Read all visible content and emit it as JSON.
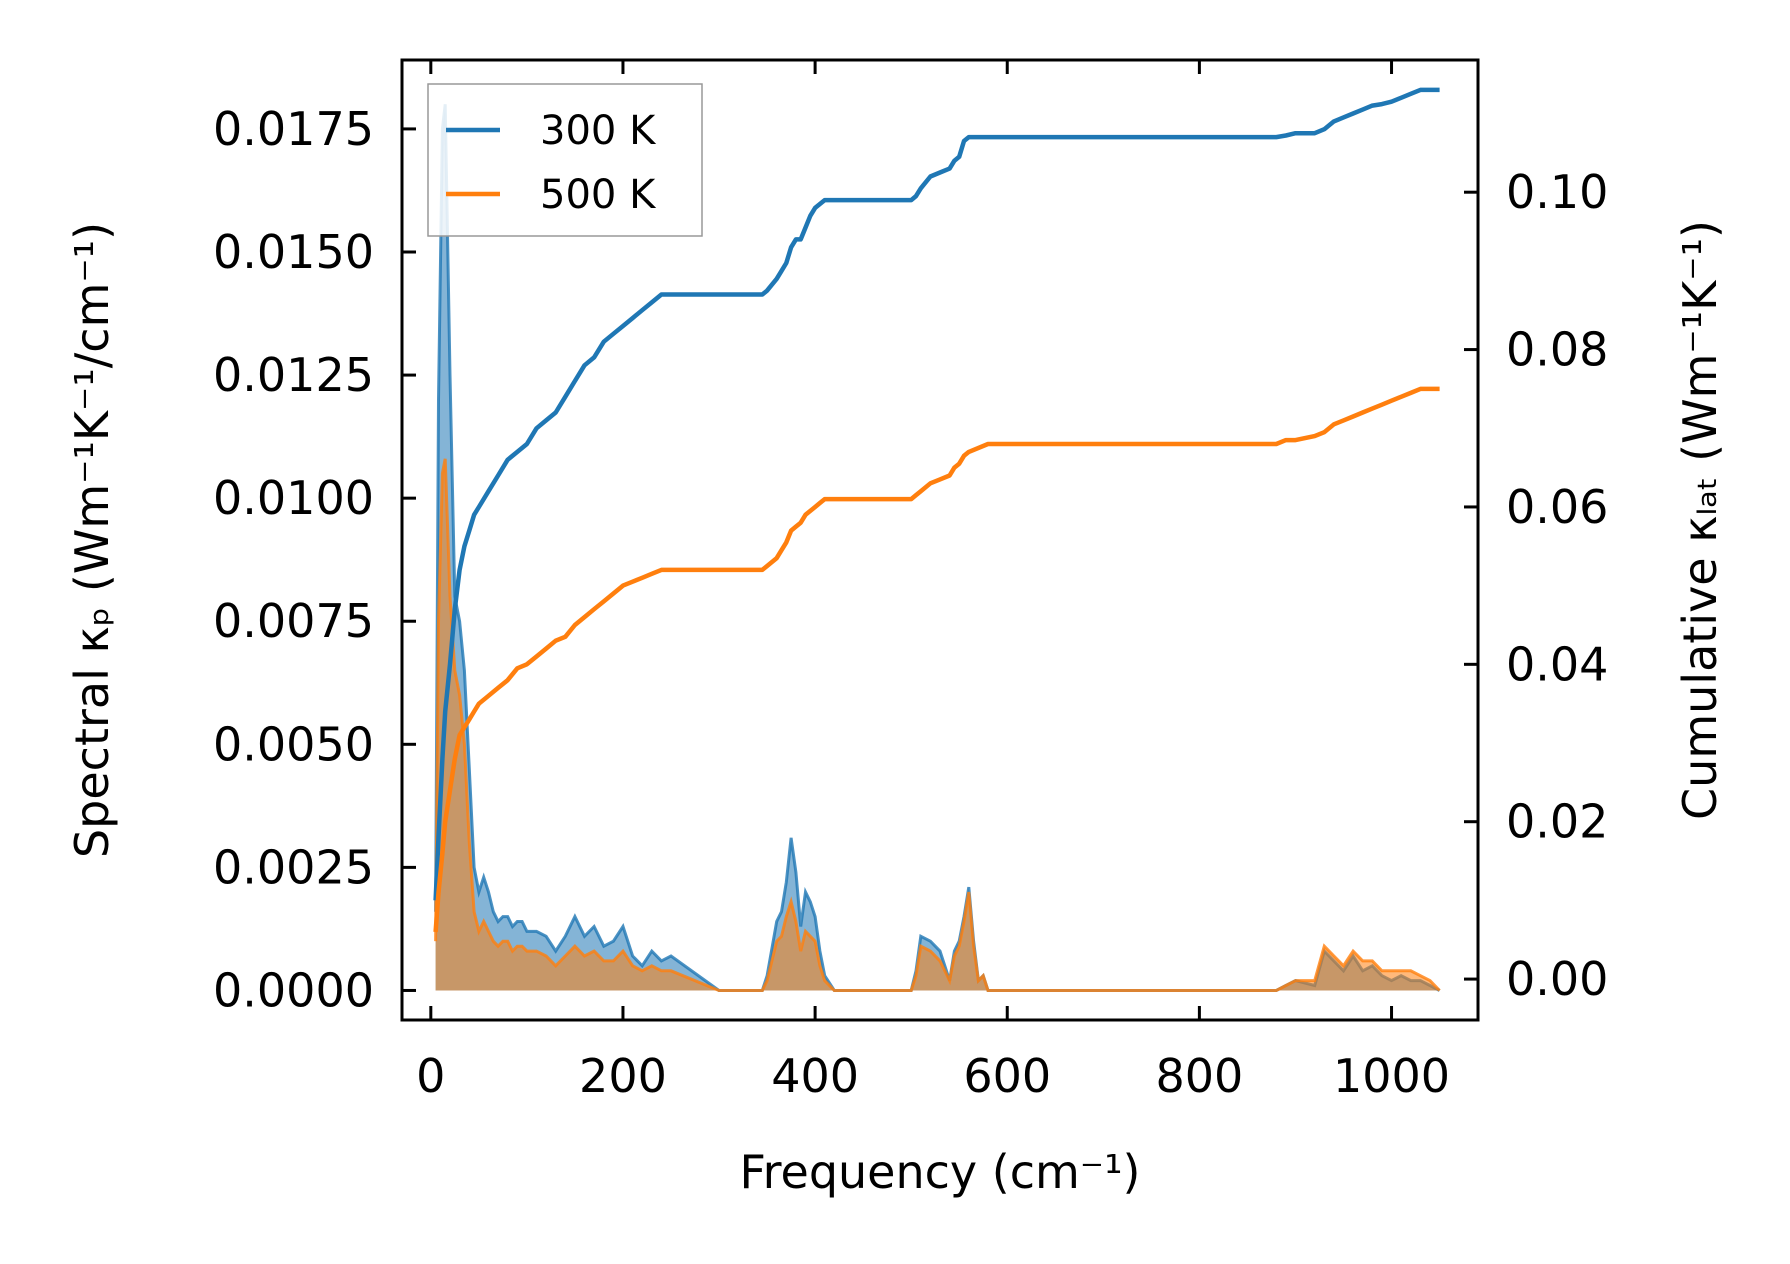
{
  "chart_data": {
    "type": "line",
    "xlabel": "Frequency (cm⁻¹)",
    "ylabel_left": "Spectral κₚ (Wm⁻¹K⁻¹/cm⁻¹)",
    "ylabel_right": "Cumulative κₗₐₜ (Wm⁻¹K⁻¹)",
    "xlim": [
      -30,
      1090
    ],
    "ylim_left": [
      -0.0006,
      0.0189
    ],
    "ylim_right": [
      -0.0052,
      0.1168
    ],
    "x_ticks": [
      0,
      200,
      400,
      600,
      800,
      1000
    ],
    "x_tick_labels": [
      "0",
      "200",
      "400",
      "600",
      "800",
      "1000"
    ],
    "y_left_ticks": [
      0,
      0.0025,
      0.005,
      0.0075,
      0.01,
      0.0125,
      0.015,
      0.0175
    ],
    "y_left_tick_labels": [
      "0.0000",
      "0.0025",
      "0.0050",
      "0.0075",
      "0.0100",
      "0.0125",
      "0.0150",
      "0.0175"
    ],
    "y_right_ticks": [
      0,
      0.02,
      0.04,
      0.06,
      0.08,
      0.1
    ],
    "y_right_tick_labels": [
      "0.00",
      "0.02",
      "0.04",
      "0.06",
      "0.08",
      "0.10"
    ],
    "legend": {
      "position": "top-left",
      "entries": [
        "300 K",
        "500 K"
      ]
    },
    "colors": {
      "300K": "#1f77b4",
      "500K": "#ff7f0e"
    },
    "grid": false,
    "spectral": [
      {
        "name": "300 K",
        "axis": "left",
        "x": [
          5,
          8,
          12,
          15,
          20,
          25,
          30,
          35,
          40,
          45,
          50,
          55,
          60,
          65,
          70,
          75,
          80,
          85,
          90,
          95,
          100,
          110,
          120,
          130,
          140,
          150,
          160,
          170,
          180,
          190,
          200,
          210,
          220,
          230,
          240,
          250,
          300,
          345,
          350,
          360,
          365,
          370,
          375,
          380,
          385,
          390,
          395,
          400,
          405,
          410,
          420,
          500,
          505,
          510,
          520,
          530,
          540,
          545,
          550,
          555,
          560,
          565,
          570,
          575,
          580,
          600,
          700,
          800,
          880,
          890,
          900,
          920,
          930,
          940,
          950,
          960,
          970,
          980,
          990,
          1000,
          1010,
          1020,
          1030,
          1040,
          1050
        ],
        "y": [
          0.0016,
          0.012,
          0.0175,
          0.018,
          0.0125,
          0.008,
          0.0075,
          0.0065,
          0.0045,
          0.0025,
          0.002,
          0.0023,
          0.002,
          0.0016,
          0.0014,
          0.0015,
          0.0015,
          0.0013,
          0.0014,
          0.0014,
          0.0012,
          0.0012,
          0.0011,
          0.0008,
          0.0011,
          0.0015,
          0.0011,
          0.0013,
          0.0009,
          0.001,
          0.0013,
          0.0007,
          0.0005,
          0.0008,
          0.0006,
          0.0007,
          0.0,
          0.0,
          0.0003,
          0.0014,
          0.0016,
          0.0022,
          0.0031,
          0.0024,
          0.0013,
          0.002,
          0.0018,
          0.0015,
          0.0008,
          0.0003,
          0.0,
          0.0,
          0.0004,
          0.0011,
          0.001,
          0.0008,
          0.0002,
          0.0008,
          0.001,
          0.0015,
          0.0021,
          0.001,
          0.0002,
          0.0003,
          0.0,
          0.0,
          0.0,
          0.0,
          0.0,
          0.0001,
          0.0002,
          0.0001,
          0.0008,
          0.0006,
          0.0004,
          0.0007,
          0.0004,
          0.0005,
          0.0003,
          0.0002,
          0.0003,
          0.0002,
          0.0002,
          0.0001,
          0.0
        ]
      },
      {
        "name": "500 K",
        "axis": "left",
        "x": [
          5,
          8,
          12,
          15,
          20,
          25,
          30,
          35,
          40,
          45,
          50,
          55,
          60,
          65,
          70,
          75,
          80,
          85,
          90,
          95,
          100,
          110,
          120,
          130,
          140,
          150,
          160,
          170,
          180,
          190,
          200,
          210,
          220,
          230,
          240,
          250,
          300,
          345,
          350,
          360,
          365,
          370,
          375,
          380,
          385,
          390,
          395,
          400,
          405,
          410,
          420,
          500,
          505,
          510,
          520,
          530,
          540,
          545,
          550,
          555,
          560,
          565,
          570,
          575,
          580,
          600,
          700,
          800,
          880,
          890,
          900,
          920,
          930,
          940,
          950,
          960,
          970,
          980,
          990,
          1000,
          1010,
          1020,
          1030,
          1040,
          1050
        ],
        "y": [
          0.001,
          0.0075,
          0.0105,
          0.0108,
          0.008,
          0.0065,
          0.006,
          0.005,
          0.003,
          0.0016,
          0.0012,
          0.0014,
          0.0012,
          0.001,
          0.0009,
          0.001,
          0.001,
          0.0008,
          0.0009,
          0.0009,
          0.0008,
          0.0008,
          0.0007,
          0.0005,
          0.0007,
          0.0009,
          0.0007,
          0.0008,
          0.0006,
          0.0006,
          0.0008,
          0.0005,
          0.0004,
          0.0005,
          0.0004,
          0.0004,
          0.0,
          0.0,
          0.0002,
          0.001,
          0.0011,
          0.0015,
          0.0018,
          0.0014,
          0.0008,
          0.0012,
          0.0011,
          0.001,
          0.0005,
          0.0002,
          0.0,
          0.0,
          0.0003,
          0.0009,
          0.0008,
          0.0006,
          0.0002,
          0.0007,
          0.0009,
          0.0014,
          0.002,
          0.0009,
          0.0002,
          0.0003,
          0.0,
          0.0,
          0.0,
          0.0,
          0.0,
          0.0001,
          0.0002,
          0.0002,
          0.0009,
          0.0007,
          0.0005,
          0.0008,
          0.0006,
          0.0006,
          0.0004,
          0.0004,
          0.0004,
          0.0004,
          0.0003,
          0.0002,
          0.0
        ]
      }
    ],
    "cumulative": [
      {
        "name": "300 K",
        "axis": "right",
        "x": [
          5,
          8,
          12,
          15,
          20,
          25,
          30,
          35,
          40,
          45,
          50,
          60,
          70,
          80,
          90,
          100,
          110,
          120,
          130,
          140,
          150,
          160,
          170,
          180,
          190,
          200,
          210,
          220,
          230,
          240,
          250,
          300,
          345,
          350,
          360,
          365,
          370,
          375,
          380,
          385,
          390,
          395,
          400,
          405,
          410,
          420,
          500,
          505,
          510,
          520,
          530,
          540,
          545,
          550,
          555,
          560,
          580,
          700,
          800,
          880,
          890,
          900,
          920,
          930,
          940,
          950,
          960,
          970,
          980,
          990,
          1000,
          1010,
          1020,
          1030,
          1040,
          1050
        ],
        "y": [
          0.01,
          0.018,
          0.028,
          0.034,
          0.04,
          0.047,
          0.052,
          0.055,
          0.057,
          0.059,
          0.06,
          0.062,
          0.064,
          0.066,
          0.067,
          0.068,
          0.07,
          0.071,
          0.072,
          0.074,
          0.076,
          0.078,
          0.079,
          0.081,
          0.082,
          0.083,
          0.084,
          0.085,
          0.086,
          0.087,
          0.087,
          0.087,
          0.087,
          0.0875,
          0.089,
          0.09,
          0.091,
          0.093,
          0.094,
          0.094,
          0.0955,
          0.097,
          0.098,
          0.0985,
          0.099,
          0.099,
          0.099,
          0.0995,
          0.1005,
          0.102,
          0.1025,
          0.103,
          0.104,
          0.1045,
          0.1065,
          0.107,
          0.107,
          0.107,
          0.107,
          0.107,
          0.1072,
          0.1075,
          0.1075,
          0.108,
          0.109,
          0.1095,
          0.11,
          0.1105,
          0.111,
          0.1112,
          0.1115,
          0.112,
          0.1125,
          0.113,
          0.113,
          0.113
        ]
      },
      {
        "name": "500 K",
        "axis": "right",
        "x": [
          5,
          8,
          12,
          15,
          20,
          25,
          30,
          35,
          40,
          45,
          50,
          60,
          70,
          80,
          90,
          100,
          110,
          120,
          130,
          140,
          150,
          160,
          170,
          180,
          190,
          200,
          210,
          220,
          230,
          240,
          250,
          300,
          345,
          350,
          360,
          365,
          370,
          375,
          380,
          385,
          390,
          395,
          400,
          405,
          410,
          420,
          500,
          505,
          510,
          520,
          530,
          540,
          545,
          550,
          555,
          560,
          580,
          700,
          800,
          880,
          890,
          900,
          920,
          930,
          940,
          950,
          960,
          970,
          980,
          990,
          1000,
          1010,
          1020,
          1030,
          1040,
          1050
        ],
        "y": [
          0.006,
          0.011,
          0.016,
          0.02,
          0.024,
          0.028,
          0.031,
          0.032,
          0.033,
          0.034,
          0.035,
          0.036,
          0.037,
          0.038,
          0.0395,
          0.04,
          0.041,
          0.042,
          0.043,
          0.0435,
          0.045,
          0.046,
          0.047,
          0.048,
          0.049,
          0.05,
          0.0505,
          0.051,
          0.0515,
          0.052,
          0.052,
          0.052,
          0.052,
          0.0525,
          0.0535,
          0.0545,
          0.0555,
          0.057,
          0.0575,
          0.058,
          0.059,
          0.0595,
          0.06,
          0.0605,
          0.061,
          0.061,
          0.061,
          0.0615,
          0.062,
          0.063,
          0.0635,
          0.064,
          0.065,
          0.0655,
          0.0665,
          0.067,
          0.068,
          0.068,
          0.068,
          0.068,
          0.0685,
          0.0685,
          0.069,
          0.0695,
          0.0705,
          0.071,
          0.0715,
          0.072,
          0.0725,
          0.073,
          0.0735,
          0.074,
          0.0745,
          0.075,
          0.075,
          0.075
        ]
      }
    ]
  }
}
